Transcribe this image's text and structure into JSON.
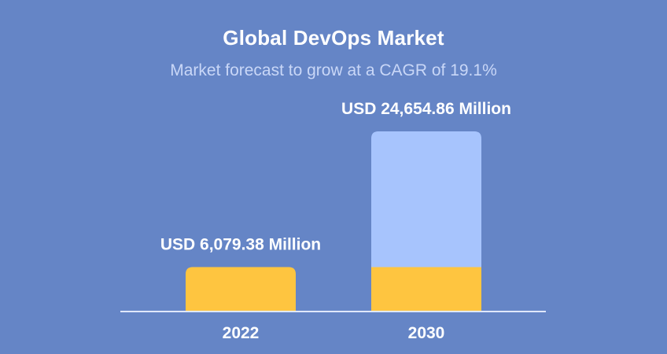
{
  "chart_data": {
    "type": "bar",
    "title": "Global DevOps Market",
    "subtitle": "Market forecast to grow at a CAGR of 19.1%",
    "categories": [
      "2022",
      "2030"
    ],
    "values": [
      6079.38,
      24654.86
    ],
    "data_labels": [
      "USD 6,079.38 Million",
      "USD 24,654.86 Million"
    ],
    "unit": "USD Million",
    "baseline_value": 6079.38,
    "xlabel": "",
    "ylabel": "",
    "ylim": [
      0,
      24654.86
    ],
    "grid": false,
    "legend": "none"
  },
  "colors": {
    "background": "#6585c6",
    "base_bar": "#fec540",
    "growth_bar": "#a7c4fd",
    "axis": "#dfe8ff",
    "text": "#ffffff",
    "subtitle": "#c9d7f7"
  }
}
